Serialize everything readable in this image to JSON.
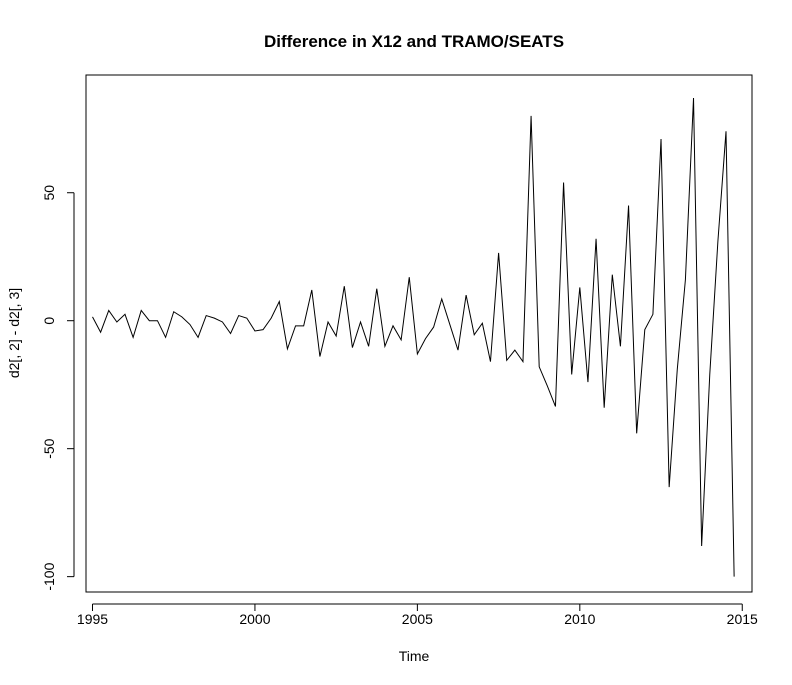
{
  "chart_data": {
    "type": "line",
    "title": "Difference in X12 and TRAMO/SEATS",
    "xlabel": "Time",
    "ylabel": "d2[, 2] - d2[, 3]",
    "xlim": [
      1994.8,
      2015.3
    ],
    "ylim": [
      -106,
      96
    ],
    "xticks": [
      1995,
      2000,
      2005,
      2010,
      2015
    ],
    "yticks": [
      -100,
      -50,
      0,
      50
    ],
    "x_start": 1995.0,
    "x_step": 0.25,
    "grid": false,
    "legend": "none",
    "line_color": "#000000",
    "series": [
      {
        "values": [
          1.5,
          -4.5,
          4,
          -0.5,
          2.5,
          -6.5,
          4,
          0,
          0,
          -6.5,
          3.5,
          1.5,
          -1.5,
          -6.5,
          2,
          1,
          -0.5,
          -5,
          2,
          1,
          -4,
          -3.5,
          1,
          7.5,
          -11,
          -2,
          -2,
          12,
          -14,
          -0.5,
          -6,
          13.5,
          -10.5,
          -0.5,
          -10,
          12.5,
          -10,
          -2,
          -7.5,
          17,
          -13,
          -7,
          -2.5,
          8.5,
          -1.5,
          -11.5,
          10,
          -5.5,
          -1,
          -16,
          26.5,
          -15.5,
          -11.5,
          -16,
          80,
          -18,
          -25.5,
          -33.5,
          54,
          -21,
          13,
          -24,
          32,
          -34,
          18,
          -10,
          45,
          -44,
          -3.5,
          2.5,
          71,
          -65,
          -19,
          16,
          87,
          -88,
          -21,
          31,
          74,
          -100
        ]
      }
    ]
  }
}
